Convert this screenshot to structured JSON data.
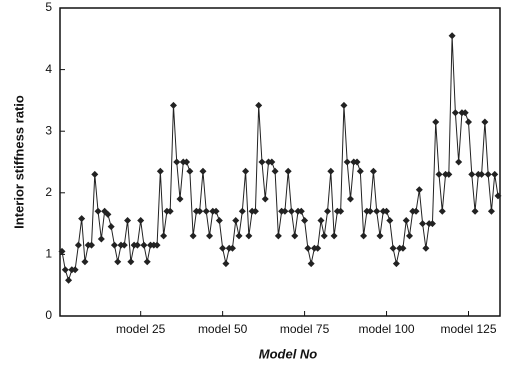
{
  "chart_data": {
    "type": "line",
    "xlabel": "Model No",
    "ylabel": "Interior stiffness ratio",
    "color": "#222222",
    "xlim": [
      1,
      134
    ],
    "ylim": [
      0,
      5
    ],
    "yticks": [
      0,
      1,
      2,
      3,
      4,
      5
    ],
    "xticks": [
      {
        "value": 25,
        "label": "model 25"
      },
      {
        "value": 50,
        "label": "model 50"
      },
      {
        "value": 75,
        "label": "model 75"
      },
      {
        "value": 100,
        "label": "model 100"
      },
      {
        "value": 125,
        "label": "model 125"
      }
    ],
    "x": [
      1,
      2,
      3,
      4,
      5,
      6,
      7,
      8,
      9,
      10,
      11,
      12,
      13,
      14,
      15,
      16,
      17,
      18,
      19,
      20,
      21,
      22,
      23,
      24,
      25,
      26,
      27,
      28,
      29,
      30,
      31,
      32,
      33,
      34,
      35,
      36,
      37,
      38,
      39,
      40,
      41,
      42,
      43,
      44,
      45,
      46,
      47,
      48,
      49,
      50,
      51,
      52,
      53,
      54,
      55,
      56,
      57,
      58,
      59,
      60,
      61,
      62,
      63,
      64,
      65,
      66,
      67,
      68,
      69,
      70,
      71,
      72,
      73,
      74,
      75,
      76,
      77,
      78,
      79,
      80,
      81,
      82,
      83,
      84,
      85,
      86,
      87,
      88,
      89,
      90,
      91,
      92,
      93,
      94,
      95,
      96,
      97,
      98,
      99,
      100,
      101,
      102,
      103,
      104,
      105,
      106,
      107,
      108,
      109,
      110,
      111,
      112,
      113,
      114,
      115,
      116,
      117,
      118,
      119,
      120,
      121,
      122,
      123,
      124,
      125,
      126,
      127,
      128,
      129,
      130,
      131,
      132,
      133,
      134
    ],
    "values": [
      1.05,
      0.75,
      0.58,
      0.75,
      0.75,
      1.15,
      1.58,
      0.88,
      1.15,
      1.15,
      2.3,
      1.7,
      1.25,
      1.7,
      1.65,
      1.45,
      1.15,
      0.88,
      1.15,
      1.15,
      1.55,
      0.88,
      1.15,
      1.15,
      1.55,
      1.15,
      0.88,
      1.15,
      1.15,
      1.15,
      2.35,
      1.3,
      1.7,
      1.7,
      3.42,
      2.5,
      1.9,
      2.5,
      2.5,
      2.35,
      1.3,
      1.7,
      1.7,
      2.35,
      1.7,
      1.3,
      1.7,
      1.7,
      1.55,
      1.1,
      0.85,
      1.1,
      1.1,
      1.55,
      1.3,
      1.7,
      2.35,
      1.3,
      1.7,
      1.7,
      3.42,
      2.5,
      1.9,
      2.5,
      2.5,
      2.35,
      1.3,
      1.7,
      1.7,
      2.35,
      1.7,
      1.3,
      1.7,
      1.7,
      1.55,
      1.1,
      0.85,
      1.1,
      1.1,
      1.55,
      1.3,
      1.7,
      2.35,
      1.3,
      1.7,
      1.7,
      3.42,
      2.5,
      1.9,
      2.5,
      2.5,
      2.35,
      1.3,
      1.7,
      1.7,
      2.35,
      1.7,
      1.3,
      1.7,
      1.7,
      1.55,
      1.1,
      0.85,
      1.1,
      1.1,
      1.55,
      1.3,
      1.7,
      1.7,
      2.05,
      1.5,
      1.1,
      1.5,
      1.5,
      3.15,
      2.3,
      1.7,
      2.3,
      2.3,
      4.55,
      3.3,
      2.5,
      3.3,
      3.3,
      3.15,
      2.3,
      1.7,
      2.3,
      2.3,
      3.15,
      2.3,
      1.7,
      2.3,
      1.95
    ]
  }
}
